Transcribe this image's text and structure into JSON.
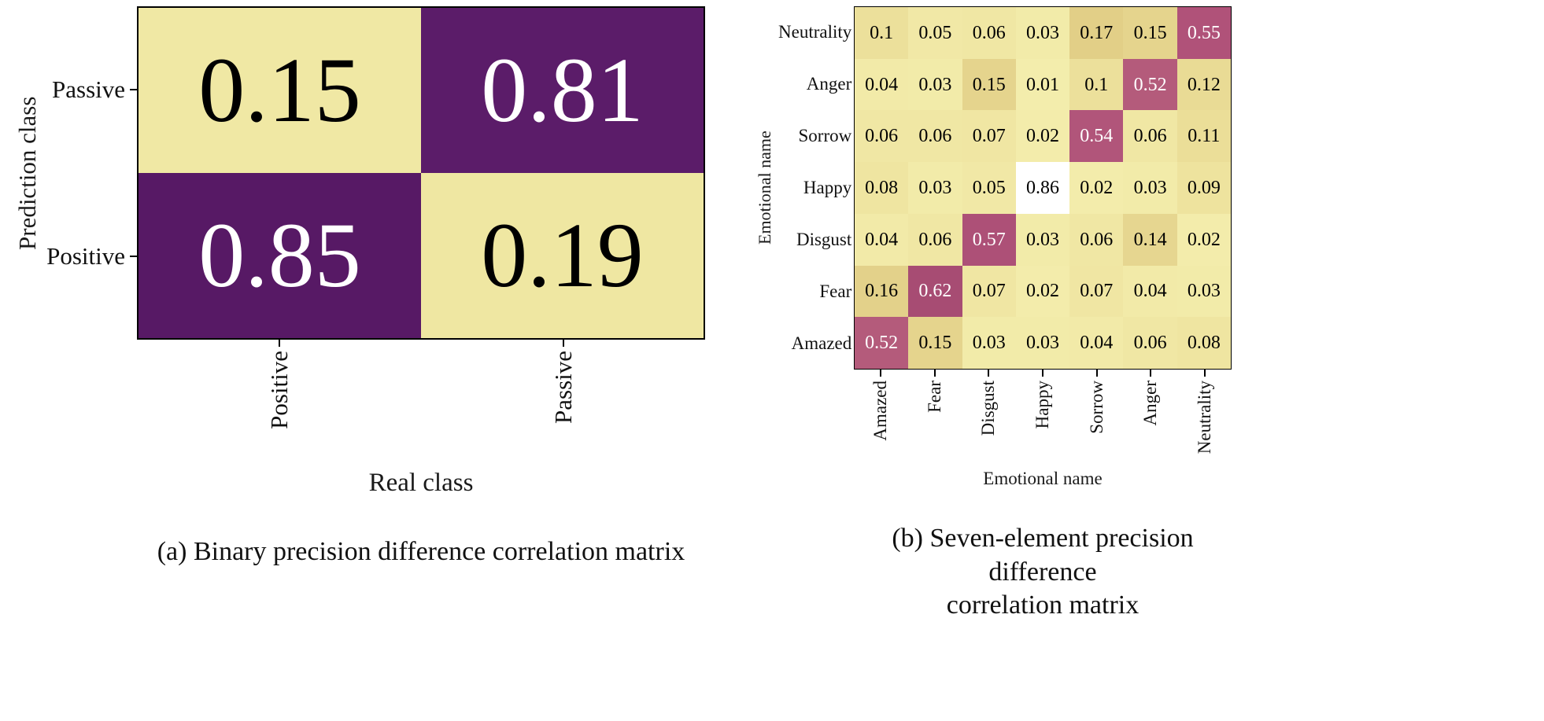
{
  "page": {
    "background": "#ffffff",
    "text_color": "#111111"
  },
  "chart_data": [
    {
      "type": "heatmap",
      "caption_lines": [
        "(a) Binary precision difference correlation matrix"
      ],
      "xlabel": "Real class",
      "ylabel": "Prediction class",
      "x_ticks": [
        "Positive",
        "Passive"
      ],
      "y_ticks": [
        "Passive",
        "Positive"
      ],
      "values": [
        [
          0.15,
          0.81
        ],
        [
          0.85,
          0.19
        ]
      ],
      "value_range": [
        0,
        1
      ],
      "legend": "none",
      "grid": false,
      "color_stops": [
        [
          0.0,
          "#f3ecab"
        ],
        [
          0.19,
          "#efe7a2"
        ],
        [
          0.5,
          "#a05a86"
        ],
        [
          0.81,
          "#5b1c69"
        ],
        [
          1.0,
          "#470f55"
        ]
      ]
    },
    {
      "type": "heatmap",
      "caption_lines": [
        "(b) Seven-element precision difference",
        "correlation matrix"
      ],
      "xlabel": "Emotional name",
      "ylabel": "Emotional name",
      "x_ticks": [
        "Amazed",
        "Fear",
        "Disgust",
        "Happy",
        "Sorrow",
        "Anger",
        "Neutrality"
      ],
      "y_ticks": [
        "Neutrality",
        "Anger",
        "Sorrow",
        "Happy",
        "Disgust",
        "Fear",
        "Amazed"
      ],
      "values": [
        [
          0.1,
          0.05,
          0.06,
          0.03,
          0.17,
          0.15,
          0.55
        ],
        [
          0.04,
          0.03,
          0.15,
          0.01,
          0.1,
          0.52,
          0.12
        ],
        [
          0.06,
          0.06,
          0.07,
          0.02,
          0.54,
          0.06,
          0.11
        ],
        [
          0.08,
          0.03,
          0.05,
          0.86,
          0.02,
          0.03,
          0.09
        ],
        [
          0.04,
          0.06,
          0.57,
          0.03,
          0.06,
          0.14,
          0.02
        ],
        [
          0.16,
          0.62,
          0.07,
          0.02,
          0.07,
          0.04,
          0.03
        ],
        [
          0.52,
          0.15,
          0.03,
          0.03,
          0.04,
          0.06,
          0.08
        ]
      ],
      "value_range": [
        0,
        0.86
      ],
      "legend": "none",
      "grid": false,
      "color_stops": [
        [
          0.0,
          "#f4eeae"
        ],
        [
          0.08,
          "#efe5a1"
        ],
        [
          0.17,
          "#e2cf87"
        ],
        [
          0.45,
          "#bd6f80"
        ],
        [
          0.55,
          "#b05279"
        ],
        [
          0.65,
          "#a34970"
        ],
        [
          0.86,
          "#ffffff"
        ],
        [
          1.0,
          "#ffffff"
        ]
      ]
    }
  ]
}
